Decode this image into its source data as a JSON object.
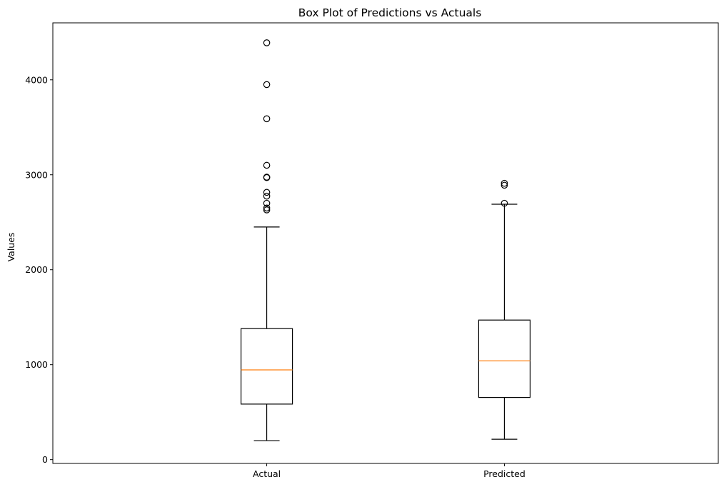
{
  "chart_data": {
    "type": "box",
    "title": "Box Plot of Predictions vs Actuals",
    "xlabel": "",
    "ylabel": "Values",
    "ylim": [
      -40,
      4600
    ],
    "yticks": [
      0,
      1000,
      2000,
      3000,
      4000
    ],
    "grid": false,
    "categories": [
      "Actual",
      "Predicted"
    ],
    "boxes": [
      {
        "label": "Actual",
        "whisker_low": 200,
        "q1": 585,
        "median": 945,
        "q3": 1380,
        "whisker_high": 2450,
        "outliers": [
          2630,
          2650,
          2700,
          2775,
          2815,
          2970,
          2975,
          3100,
          3590,
          3950,
          4390
        ]
      },
      {
        "label": "Predicted",
        "whisker_low": 215,
        "q1": 655,
        "median": 1040,
        "q3": 1470,
        "whisker_high": 2690,
        "outliers": [
          2700,
          2890,
          2910
        ]
      }
    ],
    "colors": {
      "box": "#000000",
      "median": "#ff7f0e",
      "outlier": "#000000"
    }
  }
}
